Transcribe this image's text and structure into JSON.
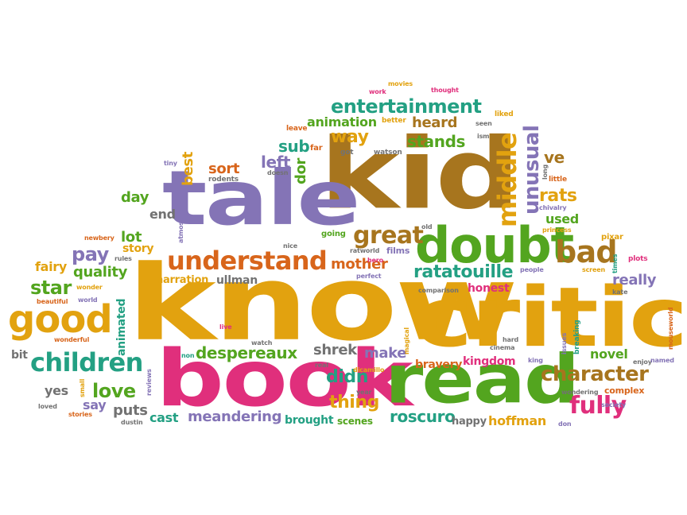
{
  "palette": {
    "gold": "#e2a20f",
    "brown": "#a7751e",
    "purple": "#8474b6",
    "green": "#53a51f",
    "teal": "#23a083",
    "magenta": "#e02f7c",
    "orange": "#d8651b",
    "gray": "#727272"
  },
  "words": [
    {
      "id": "kid",
      "text": "kid",
      "color": "brown"
    },
    {
      "id": "know",
      "text": "know",
      "color": "gold"
    },
    {
      "id": "critic",
      "text": "critic",
      "color": "gold"
    },
    {
      "id": "tale",
      "text": "tale",
      "color": "purple"
    },
    {
      "id": "book",
      "text": "book",
      "color": "magenta"
    },
    {
      "id": "read",
      "text": "read",
      "color": "green"
    },
    {
      "id": "doubt",
      "text": "doubt",
      "color": "green"
    },
    {
      "id": "understand",
      "text": "understand",
      "color": "orange"
    },
    {
      "id": "good",
      "text": "good",
      "color": "gold"
    },
    {
      "id": "children",
      "text": "children",
      "color": "teal"
    },
    {
      "id": "entertainment",
      "text": "entertainment",
      "color": "teal"
    },
    {
      "id": "middle",
      "text": "middle",
      "color": "gold"
    },
    {
      "id": "great",
      "text": "great",
      "color": "brown"
    },
    {
      "id": "ratatouille",
      "text": "ratatouille",
      "color": "teal"
    },
    {
      "id": "bad",
      "text": "bad",
      "color": "brown"
    },
    {
      "id": "character",
      "text": "character",
      "color": "brown"
    },
    {
      "id": "fully",
      "text": "fully",
      "color": "magenta"
    },
    {
      "id": "unusual",
      "text": "unusual",
      "color": "purple"
    },
    {
      "id": "animation",
      "text": "animation",
      "color": "green"
    },
    {
      "id": "heard",
      "text": "heard",
      "color": "brown"
    },
    {
      "id": "way",
      "text": "way",
      "color": "gold"
    },
    {
      "id": "stands",
      "text": "stands",
      "color": "green"
    },
    {
      "id": "sub",
      "text": "sub",
      "color": "teal"
    },
    {
      "id": "dor",
      "text": "dor",
      "color": "green"
    },
    {
      "id": "left",
      "text": "left",
      "color": "purple"
    },
    {
      "id": "sort",
      "text": "sort",
      "color": "orange"
    },
    {
      "id": "best",
      "text": "best",
      "color": "gold"
    },
    {
      "id": "day",
      "text": "day",
      "color": "green"
    },
    {
      "id": "end",
      "text": "end",
      "color": "gray"
    },
    {
      "id": "lot",
      "text": "lot",
      "color": "green"
    },
    {
      "id": "story",
      "text": "story",
      "color": "gold"
    },
    {
      "id": "pay",
      "text": "pay",
      "color": "purple"
    },
    {
      "id": "quality",
      "text": "quality",
      "color": "green"
    },
    {
      "id": "star",
      "text": "star",
      "color": "green"
    },
    {
      "id": "fairy",
      "text": "fairy",
      "color": "gold"
    },
    {
      "id": "narration",
      "text": "narration",
      "color": "gold"
    },
    {
      "id": "ullman",
      "text": "ullman",
      "color": "gray"
    },
    {
      "id": "mother",
      "text": "mother",
      "color": "orange"
    },
    {
      "id": "honest",
      "text": "honest",
      "color": "magenta"
    },
    {
      "id": "really",
      "text": "really",
      "color": "purple"
    },
    {
      "id": "rats",
      "text": "rats",
      "color": "gold"
    },
    {
      "id": "used",
      "text": "used",
      "color": "green"
    },
    {
      "id": "ve",
      "text": "ve",
      "color": "brown"
    },
    {
      "id": "despereaux",
      "text": "despereaux",
      "color": "green"
    },
    {
      "id": "shrek",
      "text": "shrek",
      "color": "gray"
    },
    {
      "id": "make",
      "text": "make",
      "color": "purple"
    },
    {
      "id": "didn",
      "text": "didn",
      "color": "teal"
    },
    {
      "id": "thing",
      "text": "thing",
      "color": "gold"
    },
    {
      "id": "bravery",
      "text": "bravery",
      "color": "orange"
    },
    {
      "id": "kingdom",
      "text": "kingdom",
      "color": "magenta"
    },
    {
      "id": "novel",
      "text": "novel",
      "color": "green"
    },
    {
      "id": "love",
      "text": "love",
      "color": "green"
    },
    {
      "id": "yes",
      "text": "yes",
      "color": "gray"
    },
    {
      "id": "say",
      "text": "say",
      "color": "purple"
    },
    {
      "id": "puts",
      "text": "puts",
      "color": "gray"
    },
    {
      "id": "cast",
      "text": "cast",
      "color": "teal"
    },
    {
      "id": "meandering",
      "text": "meandering",
      "color": "purple"
    },
    {
      "id": "brought",
      "text": "brought",
      "color": "teal"
    },
    {
      "id": "scenes",
      "text": "scenes",
      "color": "green"
    },
    {
      "id": "roscuro",
      "text": "roscuro",
      "color": "teal"
    },
    {
      "id": "happy",
      "text": "happy",
      "color": "gray"
    },
    {
      "id": "hoffman",
      "text": "hoffman",
      "color": "gold"
    },
    {
      "id": "complex",
      "text": "complex",
      "color": "orange"
    },
    {
      "id": "animated",
      "text": "animated",
      "color": "teal"
    },
    {
      "id": "bit",
      "text": "bit",
      "color": "gray"
    },
    {
      "id": "movies",
      "text": "movies",
      "color": "gold"
    },
    {
      "id": "work",
      "text": "work",
      "color": "magenta"
    },
    {
      "id": "thought",
      "text": "thought",
      "color": "magenta"
    },
    {
      "id": "liked",
      "text": "liked",
      "color": "gold"
    },
    {
      "id": "better",
      "text": "better",
      "color": "gold"
    },
    {
      "id": "leave",
      "text": "leave",
      "color": "orange"
    },
    {
      "id": "seen",
      "text": "seen",
      "color": "gray"
    },
    {
      "id": "ism",
      "text": "ism",
      "color": "gray"
    },
    {
      "id": "far",
      "text": "far",
      "color": "orange"
    },
    {
      "id": "got",
      "text": "got",
      "color": "gray"
    },
    {
      "id": "watson",
      "text": "watson",
      "color": "gray"
    },
    {
      "id": "tiny",
      "text": "tiny",
      "color": "purple"
    },
    {
      "id": "doesn",
      "text": "doesn",
      "color": "gray"
    },
    {
      "id": "rodents",
      "text": "rodents",
      "color": "gray"
    },
    {
      "id": "long",
      "text": "long",
      "color": "gray"
    },
    {
      "id": "little",
      "text": "little",
      "color": "orange"
    },
    {
      "id": "chivalry",
      "text": "chivalry",
      "color": "purple"
    },
    {
      "id": "atmosphere",
      "text": "atmosphere",
      "color": "purple"
    },
    {
      "id": "newbery",
      "text": "newbery",
      "color": "orange"
    },
    {
      "id": "nice",
      "text": "nice",
      "color": "gray"
    },
    {
      "id": "old",
      "text": "old",
      "color": "gray"
    },
    {
      "id": "princess",
      "text": "princess",
      "color": "gold"
    },
    {
      "id": "going",
      "text": "going",
      "color": "green"
    },
    {
      "id": "pixar",
      "text": "pixar",
      "color": "gold"
    },
    {
      "id": "rules",
      "text": "rules",
      "color": "gray"
    },
    {
      "id": "ratworld",
      "text": "ratworld",
      "color": "gray"
    },
    {
      "id": "films",
      "text": "films",
      "color": "purple"
    },
    {
      "id": "plots",
      "text": "plots",
      "color": "magenta"
    },
    {
      "id": "hero",
      "text": "hero",
      "color": "magenta"
    },
    {
      "id": "times",
      "text": "times",
      "color": "teal"
    },
    {
      "id": "people",
      "text": "people",
      "color": "purple"
    },
    {
      "id": "screen",
      "text": "screen",
      "color": "gold"
    },
    {
      "id": "perfect",
      "text": "perfect",
      "color": "purple"
    },
    {
      "id": "wonder",
      "text": "wonder",
      "color": "gold"
    },
    {
      "id": "world",
      "text": "world",
      "color": "purple"
    },
    {
      "id": "kate",
      "text": "kate",
      "color": "gray"
    },
    {
      "id": "beautiful",
      "text": "beautiful",
      "color": "orange"
    },
    {
      "id": "comparison",
      "text": "comparison",
      "color": "gray"
    },
    {
      "id": "mouseworld",
      "text": "mouseworld",
      "color": "orange"
    },
    {
      "id": "live",
      "text": "live",
      "color": "magenta"
    },
    {
      "id": "magical",
      "text": "magical",
      "color": "gold"
    },
    {
      "id": "wonderful",
      "text": "wonderful",
      "color": "orange"
    },
    {
      "id": "breaking",
      "text": "breaking",
      "color": "teal"
    },
    {
      "id": "issues",
      "text": "issues",
      "color": "purple"
    },
    {
      "id": "hard",
      "text": "hard",
      "color": "gray"
    },
    {
      "id": "watch",
      "text": "watch",
      "color": "gray"
    },
    {
      "id": "non",
      "text": "non",
      "color": "teal"
    },
    {
      "id": "cinema",
      "text": "cinema",
      "color": "gray"
    },
    {
      "id": "king",
      "text": "king",
      "color": "purple"
    },
    {
      "id": "enjoy",
      "text": "enjoy",
      "color": "gray"
    },
    {
      "id": "named",
      "text": "named",
      "color": "purple"
    },
    {
      "id": "real",
      "text": "real",
      "color": "gray"
    },
    {
      "id": "dicamillo",
      "text": "dicamillo",
      "color": "gold"
    },
    {
      "id": "year",
      "text": "year",
      "color": "gray"
    },
    {
      "id": "reviews",
      "text": "reviews",
      "color": "purple"
    },
    {
      "id": "small",
      "text": "small",
      "color": "gold"
    },
    {
      "id": "loved",
      "text": "loved",
      "color": "gray"
    },
    {
      "id": "stories",
      "text": "stories",
      "color": "orange"
    },
    {
      "id": "dustin",
      "text": "dustin",
      "color": "gray"
    },
    {
      "id": "wondering",
      "text": "wondering",
      "color": "gray"
    },
    {
      "id": "society",
      "text": "society",
      "color": "purple"
    },
    {
      "id": "don",
      "text": "don",
      "color": "purple"
    }
  ]
}
